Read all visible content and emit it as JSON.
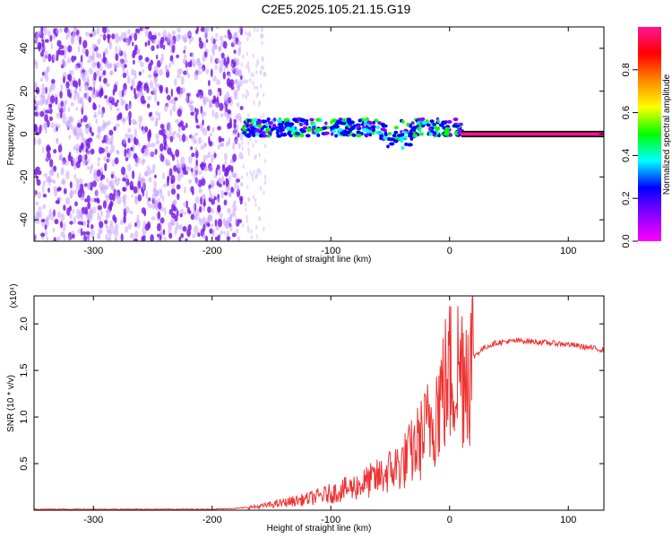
{
  "title": "C2E5.2025.105.21.15.G19",
  "colors": {
    "snr_line": "#ee3333",
    "axis": "#000000",
    "colorbar": [
      "#ff00ff",
      "#8800ff",
      "#0000ff",
      "#00ffff",
      "#00ff00",
      "#ffff00",
      "#ff8800",
      "#ff0000",
      "#ff1493"
    ]
  },
  "chart_data": [
    {
      "type": "heatmap",
      "title": "C2E5.2025.105.21.15.G19",
      "xlabel": "Height of straight line (km)",
      "ylabel": "Frequency (Hz)",
      "xlim": [
        -350,
        130
      ],
      "ylim": [
        -50,
        50
      ],
      "x_ticks": [
        -300,
        -200,
        -100,
        0,
        100
      ],
      "y_ticks": [
        -40,
        -20,
        0,
        20,
        40
      ],
      "colorbar": {
        "label": "Normalized spectral amplitude",
        "range": [
          0,
          1
        ],
        "ticks": [
          0.0,
          0.2,
          0.4,
          0.6,
          0.8
        ]
      },
      "regions": [
        {
          "name": "noise",
          "x": [
            -350,
            -175
          ],
          "y": [
            -50,
            50
          ],
          "amplitude": 0.15
        },
        {
          "name": "trace",
          "x": [
            -175,
            10
          ],
          "y_center": 3,
          "amplitude": 0.4
        },
        {
          "name": "tone",
          "x": [
            10,
            130
          ],
          "y": 0,
          "amplitude": 0.9
        }
      ]
    },
    {
      "type": "line",
      "xlabel": "Height of straight line (km)",
      "ylabel": "SNR (10 * v/v)",
      "y_multiplier": "(x10⁴)",
      "xlim": [
        -350,
        130
      ],
      "ylim": [
        0,
        2.3
      ],
      "x_ticks": [
        -300,
        -200,
        -100,
        0,
        100
      ],
      "y_ticks": [
        0.5,
        1.0,
        1.5,
        2.0
      ],
      "series": [
        {
          "x": [
            -350,
            -300,
            -250,
            -200,
            -180,
            -160,
            -140,
            -120,
            -100,
            -80,
            -60,
            -40,
            -30,
            -20,
            -15,
            -10,
            -5,
            0,
            10,
            20,
            30,
            40,
            60,
            80,
            100,
            110,
            120,
            130
          ],
          "y": [
            0.01,
            0.01,
            0.01,
            0.01,
            0.02,
            0.04,
            0.08,
            0.12,
            0.18,
            0.25,
            0.35,
            0.5,
            0.65,
            0.85,
            1.0,
            1.15,
            1.3,
            1.45,
            1.55,
            1.65,
            1.75,
            1.8,
            1.82,
            1.8,
            1.78,
            1.76,
            1.74,
            1.72
          ]
        }
      ]
    }
  ]
}
